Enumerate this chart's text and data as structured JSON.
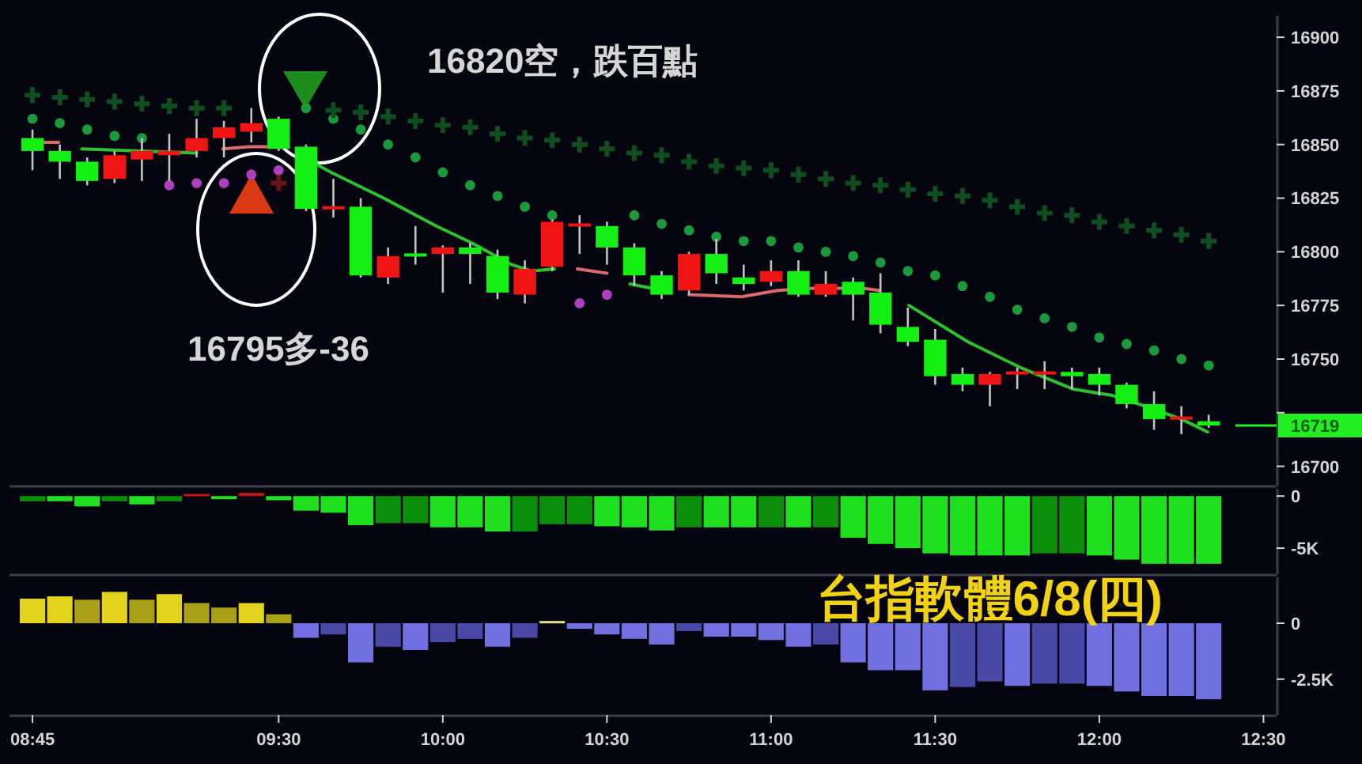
{
  "chart_data": [
    {
      "type": "candlestick",
      "x": [
        8.75,
        8.8333,
        8.9167,
        9,
        9.0833,
        9.1667,
        9.25,
        9.3333,
        9.4167,
        9.5,
        9.5833,
        9.6667,
        9.75,
        9.8333,
        9.9167,
        10,
        10.0833,
        10.1667,
        10.25,
        10.3333,
        10.4167,
        10.5,
        10.5833,
        10.6667,
        10.75,
        10.8333,
        10.9167,
        11,
        11.0833,
        11.1667,
        11.25,
        11.3333,
        11.4167,
        11.5,
        11.5833,
        11.6667,
        11.75,
        11.8333,
        11.9167,
        12,
        12.0833,
        12.1667,
        12.25,
        12.3333
      ],
      "ohlc": [
        [
          16853,
          16857,
          16838,
          16847
        ],
        [
          16847,
          16850,
          16834,
          16842
        ],
        [
          16842,
          16844,
          16831,
          16833
        ],
        [
          16834,
          16847,
          16832,
          16845
        ],
        [
          16843,
          16853,
          16833,
          16847
        ],
        [
          16845,
          16855,
          16833,
          16847
        ],
        [
          16847,
          16862,
          16844,
          16853
        ],
        [
          16853,
          16861,
          16844,
          16858
        ],
        [
          16856,
          16867,
          16851,
          16860
        ],
        [
          16862,
          16863,
          16847,
          16848
        ],
        [
          16849,
          16850,
          16819,
          16820
        ],
        [
          16820,
          16834,
          16816,
          16821
        ],
        [
          16821,
          16825,
          16788,
          16789
        ],
        [
          16788,
          16802,
          16785,
          16798
        ],
        [
          16799,
          16812,
          16794,
          16798
        ],
        [
          16799,
          16803,
          16781,
          16802
        ],
        [
          16802,
          16804,
          16785,
          16799
        ],
        [
          16798,
          16801,
          16778,
          16781
        ],
        [
          16780,
          16796,
          16776,
          16792
        ],
        [
          16793,
          16815,
          16791,
          16814
        ],
        [
          16812,
          16817,
          16799,
          16813
        ],
        [
          16812,
          16814,
          16794,
          16802
        ],
        [
          16802,
          16804,
          16784,
          16789
        ],
        [
          16789,
          16791,
          16778,
          16780
        ],
        [
          16782,
          16800,
          16780,
          16799
        ],
        [
          16799,
          16806,
          16785,
          16790
        ],
        [
          16788,
          16794,
          16782,
          16785
        ],
        [
          16786,
          16796,
          16784,
          16791
        ],
        [
          16791,
          16796,
          16779,
          16780
        ],
        [
          16780,
          16791,
          16779,
          16785
        ],
        [
          16786,
          16788,
          16768,
          16780
        ],
        [
          16781,
          16790,
          16762,
          16766
        ],
        [
          16765,
          16774,
          16756,
          16758
        ],
        [
          16759,
          16764,
          16738,
          16742
        ],
        [
          16743,
          16746,
          16735,
          16738
        ],
        [
          16738,
          16744,
          16728,
          16743
        ],
        [
          16743,
          16746,
          16736,
          16744
        ],
        [
          16743,
          16749,
          16736,
          16744
        ],
        [
          16744,
          16746,
          16736,
          16742
        ],
        [
          16743,
          16746,
          16733,
          16738
        ],
        [
          16738,
          16739,
          16727,
          16729
        ],
        [
          16729,
          16735,
          16717,
          16722
        ],
        [
          16722,
          16728,
          16715,
          16723
        ],
        [
          16721,
          16724,
          16718,
          16719
        ]
      ],
      "colors": [
        "#14f014",
        "#14f014",
        "#14f014",
        "#f01414",
        "#f01414",
        "#f01414",
        "#f01414",
        "#f01414",
        "#f01414",
        "#14f014",
        "#14f014",
        "#f01414",
        "#14f014",
        "#f01414",
        "#14f014",
        "#f01414",
        "#14f014",
        "#14f014",
        "#f01414",
        "#f01414",
        "#f01414",
        "#14f014",
        "#14f014",
        "#14f014",
        "#f01414",
        "#14f014",
        "#14f014",
        "#f01414",
        "#14f014",
        "#f01414",
        "#14f014",
        "#14f014",
        "#14f014",
        "#14f014",
        "#14f014",
        "#f01414",
        "#f01414",
        "#f01414",
        "#14f014",
        "#14f014",
        "#14f014",
        "#14f014",
        "#f01414",
        "#14f014"
      ],
      "series": [
        {
          "type": "line",
          "color": "#2fc02f",
          "x": [
            8.9,
            9.25,
            null,
            9.6,
            9.66,
            9.82,
            9.98,
            10.09,
            10.21,
            10.27,
            10.34,
            null,
            10.57,
            10.67,
            null,
            11.42,
            11.6,
            11.76,
            11.92,
            12.04,
            12.14,
            12.25,
            12.33
          ],
          "values": [
            16848,
            16846,
            null,
            16842,
            16837,
            16825,
            16812,
            16804,
            16794,
            16791,
            16792,
            null,
            16785,
            16782,
            null,
            16775,
            16758,
            16746,
            16736,
            16733,
            16728,
            16722,
            16716
          ]
        },
        {
          "type": "line",
          "color": "#d86a6a",
          "x": [
            8.76,
            8.83,
            null,
            9.33,
            9.41,
            9.48,
            null,
            10.41,
            10.5,
            null,
            10.75,
            10.91,
            11.02,
            11.13,
            11.28,
            11.33
          ],
          "values": [
            16851,
            16851,
            null,
            16848,
            16849,
            16849,
            null,
            16792,
            16790,
            null,
            16780,
            16779,
            16782,
            16783,
            16783,
            16782
          ]
        },
        {
          "type": "scatter",
          "marker": "circle",
          "color": "#1a9a3a",
          "values": [
            16862,
            16860,
            16857,
            16854,
            16853,
            null,
            null,
            null,
            null,
            null,
            16867,
            16862,
            16857,
            16850,
            16844,
            16837,
            16831,
            16826,
            16821,
            16817,
            null,
            null,
            16817,
            16813,
            16810,
            16807,
            16805,
            16805,
            16802,
            16800,
            16798,
            16795,
            16791,
            16789,
            16784,
            16779,
            16773,
            16769,
            16765,
            16760,
            16757,
            16754,
            16750,
            16747
          ]
        },
        {
          "type": "scatter",
          "marker": "circle",
          "color": "#b040c0",
          "values": [
            null,
            null,
            null,
            null,
            null,
            16831,
            16832,
            16832,
            16836,
            16838,
            null,
            null,
            null,
            null,
            null,
            null,
            null,
            null,
            null,
            null,
            16776,
            16780,
            null,
            null,
            null,
            null,
            null,
            null,
            null,
            null,
            null,
            null,
            null,
            null,
            null,
            null,
            null,
            null,
            null,
            null,
            null,
            null,
            null,
            null
          ]
        },
        {
          "type": "scatter",
          "marker": "cross",
          "color": "#0f4f1f",
          "values": [
            16873,
            16872,
            16871,
            16870,
            16869,
            16868,
            16867,
            16867,
            null,
            null,
            null,
            16866,
            16865,
            16863,
            16861,
            16859,
            16858,
            16855,
            16853,
            16852,
            16850,
            16848,
            16846,
            16845,
            16842,
            16840,
            16839,
            16838,
            16836,
            16834,
            16832,
            16831,
            16829,
            16827,
            16826,
            16824,
            16821,
            16818,
            16817,
            16814,
            16812,
            16810,
            16808,
            16805
          ]
        },
        {
          "type": "scatter",
          "marker": "cross",
          "color": "#6a1515",
          "values": [
            null,
            null,
            null,
            null,
            null,
            null,
            null,
            null,
            null,
            16832,
            null,
            null,
            null,
            null,
            null,
            null,
            null,
            null,
            null,
            null,
            null,
            null,
            null,
            null,
            null,
            null,
            null,
            null,
            null,
            null,
            null,
            null,
            null,
            null,
            null,
            null,
            null,
            null,
            null,
            null,
            null,
            null,
            null,
            null
          ]
        }
      ],
      "annotations": [
        "16795多-36",
        "16820空，跌百點"
      ],
      "ref_lines": [
        {
          "axis": "y",
          "value": 16719,
          "label": "16719",
          "color": "#22ee22"
        }
      ],
      "xlim": [
        8.68,
        12.54
      ],
      "ylim": [
        16691,
        16910
      ],
      "yticks": [
        16700,
        {
          "value": 16725,
          "label": null
        },
        16750,
        16775,
        16800,
        16825,
        16850,
        16875,
        16900
      ],
      "tick_labels": "y"
    },
    {
      "type": "bar",
      "x": [
        8.75,
        8.8333,
        8.9167,
        9,
        9.0833,
        9.1667,
        9.25,
        9.3333,
        9.4167,
        9.5,
        9.5833,
        9.6667,
        9.75,
        9.8333,
        9.9167,
        10,
        10.0833,
        10.1667,
        10.25,
        10.3333,
        10.4167,
        10.5,
        10.5833,
        10.6667,
        10.75,
        10.8333,
        10.9167,
        11,
        11.0833,
        11.1667,
        11.25,
        11.3333,
        11.4167,
        11.5,
        11.5833,
        11.6667,
        11.75,
        11.8333,
        11.9167,
        12,
        12.0833,
        12.1667,
        12.25,
        12.3333
      ],
      "values": [
        -500,
        -500,
        -1000,
        -500,
        -800,
        -500,
        200,
        -300,
        300,
        -400,
        -1400,
        -1600,
        -2800,
        -2600,
        -2600,
        -3000,
        -3000,
        -3400,
        -3400,
        -2700,
        -2700,
        -2900,
        -3000,
        -3300,
        -3000,
        -3000,
        -3000,
        -3000,
        -3000,
        -3000,
        -4000,
        -4600,
        -5000,
        -5500,
        -5700,
        -5700,
        -5700,
        -5500,
        -5500,
        -5700,
        -6100,
        -6500,
        -6500,
        -6500
      ],
      "colors": [
        "#0b8f0b",
        "#1ee01e",
        "#1ee01e",
        "#0b8f0b",
        "#1ee01e",
        "#0b8f0b",
        "#c81414",
        "#1ee01e",
        "#c81414",
        "#1ee01e",
        "#1ee01e",
        "#1ee01e",
        "#1ee01e",
        "#0b8f0b",
        "#0b8f0b",
        "#1ee01e",
        "#1ee01e",
        "#1ee01e",
        "#0b8f0b",
        "#0b8f0b",
        "#0b8f0b",
        "#1ee01e",
        "#1ee01e",
        "#1ee01e",
        "#0b8f0b",
        "#1ee01e",
        "#1ee01e",
        "#0b8f0b",
        "#1ee01e",
        "#0b8f0b",
        "#1ee01e",
        "#1ee01e",
        "#1ee01e",
        "#1ee01e",
        "#1ee01e",
        "#1ee01e",
        "#1ee01e",
        "#0b8f0b",
        "#0b8f0b",
        "#1ee01e",
        "#1ee01e",
        "#1ee01e",
        "#1ee01e",
        "#1ee01e"
      ],
      "xlim": [
        8.68,
        12.54
      ],
      "ylim": [
        -7500,
        700
      ],
      "yticks": [
        0,
        {
          "value": -5000,
          "label": "-5K"
        }
      ],
      "tick_labels": "y"
    },
    {
      "type": "bar",
      "title": "台指軟體6/8(四)",
      "x": [
        8.75,
        8.8333,
        8.9167,
        9,
        9.0833,
        9.1667,
        9.25,
        9.3333,
        9.4167,
        9.5,
        9.5833,
        9.6667,
        9.75,
        9.8333,
        9.9167,
        10,
        10.0833,
        10.1667,
        10.25,
        10.3333,
        10.4167,
        10.5,
        10.5833,
        10.6667,
        10.75,
        10.8333,
        10.9167,
        11,
        11.0833,
        11.1667,
        11.25,
        11.3333,
        11.4167,
        11.5,
        11.5833,
        11.6667,
        11.75,
        11.8333,
        11.9167,
        12,
        12.0833,
        12.1667,
        12.25,
        12.3333
      ],
      "values": [
        1100,
        1200,
        1050,
        1400,
        1050,
        1300,
        900,
        700,
        900,
        400,
        -650,
        -500,
        -1750,
        -1050,
        -1200,
        -850,
        -700,
        -1050,
        -650,
        100,
        -250,
        -500,
        -700,
        -950,
        -350,
        -600,
        -600,
        -750,
        -1050,
        -950,
        -1750,
        -2100,
        -2100,
        -3000,
        -2850,
        -2600,
        -2800,
        -2700,
        -2700,
        -2800,
        -3050,
        -3250,
        -3250,
        -3400
      ],
      "colors": [
        "#e3d31c",
        "#e3d31c",
        "#aaa018",
        "#e3d31c",
        "#aaa018",
        "#e3d31c",
        "#aaa018",
        "#aaa018",
        "#e3d31c",
        "#aaa018",
        "#7070e0",
        "#4848a6",
        "#7070e0",
        "#4848a6",
        "#7070e0",
        "#4848a6",
        "#4848a6",
        "#7070e0",
        "#4848a6",
        "#e6e08a",
        "#7070e0",
        "#7070e0",
        "#7070e0",
        "#7070e0",
        "#4848a6",
        "#7070e0",
        "#7070e0",
        "#7070e0",
        "#7070e0",
        "#4848a6",
        "#7070e0",
        "#7070e0",
        "#7070e0",
        "#7070e0",
        "#4848a6",
        "#4848a6",
        "#7070e0",
        "#4848a6",
        "#4848a6",
        "#7070e0",
        "#7070e0",
        "#7070e0",
        "#7070e0",
        "#7070e0"
      ],
      "xlim": [
        8.68,
        12.54
      ],
      "ylim": [
        -4100,
        2050
      ],
      "xticks": [
        {
          "value": 8.75,
          "label": "08:45"
        },
        {
          "value": 9.5,
          "label": "09:30"
        },
        {
          "value": 10,
          "label": "10:00"
        },
        {
          "value": 10.5,
          "label": "10:30"
        },
        {
          "value": 11,
          "label": "11:00"
        },
        {
          "value": 11.5,
          "label": "11:30"
        },
        {
          "value": 12,
          "label": "12:00"
        },
        {
          "value": 12.5,
          "label": "12:30"
        }
      ],
      "yticks": [
        0,
        {
          "value": -2500,
          "label": "-2.5K"
        }
      ]
    }
  ]
}
